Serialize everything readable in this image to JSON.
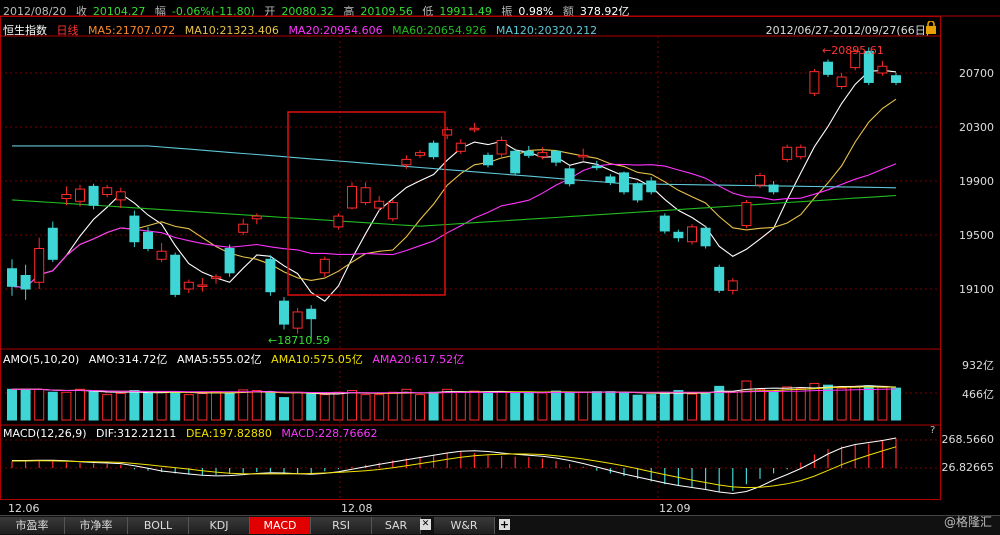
{
  "header": {
    "date": "2012/08/20",
    "close_label": "收",
    "close": "20104.27",
    "change_label": "幅",
    "change": "-0.06%(-11.80)",
    "open_label": "开",
    "open": "20080.32",
    "high_label": "高",
    "high": "20109.56",
    "low_label": "低",
    "low": "19911.49",
    "amp_label": "振",
    "amp": "0.98%",
    "amount_label": "额",
    "amount": "378.92亿"
  },
  "ma_bar": {
    "index_name": "恒生指数",
    "period": "日线",
    "ma5": "MA5:21707.072",
    "ma10": "MA10:21323.406",
    "ma20": "MA20:20954.606",
    "ma60": "MA60:20654.926",
    "ma120": "MA120:20320.212",
    "range": "2012/06/27-2012/09/27(66日)"
  },
  "price_axis": [
    "20700",
    "20300",
    "19900",
    "19500",
    "19100"
  ],
  "annotations": {
    "high": "20895.61",
    "low": "18710.59"
  },
  "amo_bar": {
    "title": "AMO(5,10,20)",
    "amo": "AMO:314.72亿",
    "ama5": "AMA5:555.02亿",
    "ama10": "AMA10:575.05亿",
    "ama20": "AMA20:617.52亿",
    "axis": [
      "932亿",
      "466亿"
    ]
  },
  "macd_bar": {
    "title": "MACD(12,26,9)",
    "dif": "DIF:312.21211",
    "dea": "DEA:197.82880",
    "macd": "MACD:228.76662",
    "axis": [
      "268.5660",
      "26.82665"
    ],
    "help": "?"
  },
  "x_axis": [
    "12.06",
    "12.08",
    "12.09"
  ],
  "tabs": [
    "市盈率",
    "市净率",
    "BOLL",
    "KDJ",
    "MACD",
    "RSI",
    "SAR",
    "W&R"
  ],
  "brand": "@格隆汇",
  "colors": {
    "up": "#ff2a2a",
    "down": "#3fd5d5",
    "ma5": "#ffffff",
    "ma10": "#e8c24a",
    "ma20": "#ff33ff",
    "ma60": "#22bb22",
    "ma120": "#5fc8d8"
  },
  "candles": [
    [
      19250,
      19120,
      19320,
      19050
    ],
    [
      19200,
      19100,
      19280,
      19020
    ],
    [
      19150,
      19400,
      19480,
      19100
    ],
    [
      19550,
      19320,
      19600,
      19300
    ],
    [
      19770,
      19800,
      19860,
      19720
    ],
    [
      19750,
      19840,
      19870,
      19710
    ],
    [
      19860,
      19720,
      19880,
      19690
    ],
    [
      19800,
      19850,
      19870,
      19780
    ],
    [
      19760,
      19820,
      19850,
      19700
    ],
    [
      19640,
      19450,
      19680,
      19410
    ],
    [
      19520,
      19400,
      19560,
      19380
    ],
    [
      19320,
      19380,
      19440,
      19300
    ],
    [
      19350,
      19060,
      19370,
      19040
    ],
    [
      19100,
      19150,
      19170,
      19070
    ],
    [
      19120,
      19130,
      19180,
      19080
    ],
    [
      19180,
      19190,
      19210,
      19140
    ],
    [
      19400,
      19220,
      19430,
      19190
    ],
    [
      19520,
      19580,
      19620,
      19500
    ],
    [
      19620,
      19640,
      19660,
      19580
    ],
    [
      19320,
      19080,
      19350,
      19050
    ],
    [
      19010,
      18840,
      19040,
      18800
    ],
    [
      18810,
      18930,
      18960,
      18770
    ],
    [
      18950,
      18880,
      18980,
      18710
    ],
    [
      19220,
      19320,
      19340,
      19190
    ],
    [
      19560,
      19640,
      19660,
      19540
    ],
    [
      19700,
      19860,
      19890,
      19690
    ],
    [
      19740,
      19850,
      19890,
      19720
    ],
    [
      19700,
      19750,
      19790,
      19680
    ],
    [
      19620,
      19740,
      19760,
      19600
    ],
    [
      20020,
      20060,
      20090,
      19990
    ],
    [
      20090,
      20110,
      20130,
      20070
    ],
    [
      20180,
      20080,
      20200,
      20060
    ],
    [
      20240,
      20280,
      20300,
      20210
    ],
    [
      20120,
      20180,
      20210,
      20100
    ],
    [
      20280,
      20290,
      20330,
      20260
    ],
    [
      20090,
      20020,
      20110,
      20000
    ],
    [
      20100,
      20200,
      20230,
      20080
    ],
    [
      20120,
      19960,
      20140,
      19940
    ],
    [
      20120,
      20090,
      20160,
      20070
    ],
    [
      20080,
      20110,
      20150,
      20060
    ],
    [
      20120,
      20040,
      20130,
      20010
    ],
    [
      19990,
      19880,
      20010,
      19860
    ],
    [
      20080,
      20090,
      20140,
      20050
    ],
    [
      20010,
      20000,
      20050,
      19980
    ],
    [
      19930,
      19890,
      19950,
      19870
    ],
    [
      19960,
      19820,
      19970,
      19800
    ],
    [
      19880,
      19760,
      19890,
      19740
    ],
    [
      19900,
      19820,
      19930,
      19800
    ],
    [
      19640,
      19530,
      19660,
      19510
    ],
    [
      19520,
      19480,
      19540,
      19450
    ],
    [
      19450,
      19560,
      19580,
      19430
    ],
    [
      19550,
      19420,
      19570,
      19400
    ],
    [
      19260,
      19090,
      19280,
      19070
    ],
    [
      19090,
      19160,
      19180,
      19060
    ],
    [
      19570,
      19740,
      19760,
      19550
    ],
    [
      19870,
      19940,
      19960,
      19850
    ],
    [
      19870,
      19820,
      19900,
      19800
    ],
    [
      20060,
      20150,
      20170,
      20040
    ],
    [
      20080,
      20150,
      20170,
      20060
    ],
    [
      20550,
      20710,
      20730,
      20530
    ],
    [
      20780,
      20690,
      20800,
      20670
    ],
    [
      20600,
      20670,
      20700,
      20580
    ],
    [
      20740,
      20860,
      20880,
      20720
    ],
    [
      20860,
      20630,
      20890,
      20610
    ],
    [
      20700,
      20750,
      20790,
      20680
    ],
    [
      20680,
      20630,
      20700,
      20610
    ]
  ],
  "amo_values": [
    520,
    520,
    520,
    470,
    470,
    520,
    480,
    430,
    450,
    500,
    460,
    470,
    480,
    430,
    450,
    480,
    460,
    510,
    500,
    470,
    380,
    470,
    450,
    430,
    470,
    500,
    430,
    430,
    470,
    520,
    430,
    470,
    520,
    470,
    490,
    460,
    480,
    470,
    470,
    460,
    490,
    460,
    470,
    480,
    480,
    470,
    420,
    430,
    470,
    500,
    440,
    450,
    570,
    470,
    660,
    520,
    480,
    560,
    530,
    620,
    590,
    540,
    570,
    580,
    570,
    540
  ],
  "macd_hist": [
    25,
    25,
    27,
    25,
    20,
    18,
    17,
    15,
    12,
    -5,
    -10,
    -15,
    -20,
    -25,
    -28,
    -26,
    -22,
    -18,
    -15,
    -15,
    -20,
    -22,
    -20,
    -12,
    -5,
    5,
    12,
    20,
    28,
    35,
    42,
    50,
    58,
    60,
    55,
    50,
    45,
    42,
    40,
    35,
    25,
    15,
    5,
    -10,
    -20,
    -30,
    -40,
    -50,
    -60,
    -65,
    -70,
    -80,
    -90,
    -85,
    -60,
    -40,
    -20,
    -5,
    20,
    50,
    70,
    80,
    85,
    90,
    100,
    110
  ]
}
